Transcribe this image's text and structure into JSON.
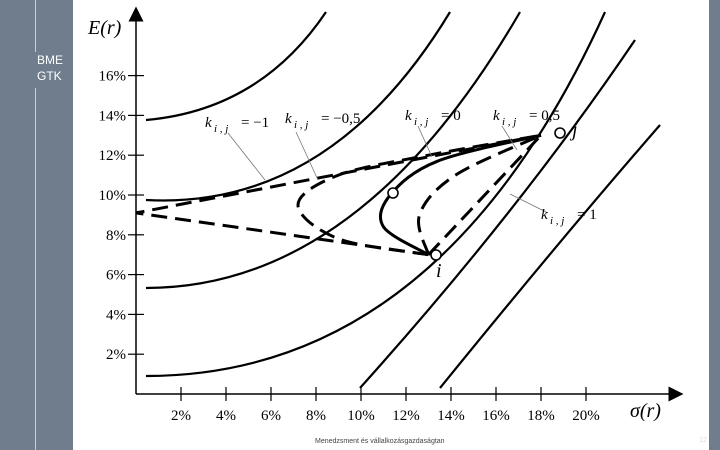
{
  "logo": {
    "line1": "BME",
    "line2": "GTK"
  },
  "footer": {
    "text": "Menedzsment és vállalkozásgazdaságtan",
    "page": "12"
  },
  "chart_data": {
    "type": "line",
    "ylabel": "E(r)",
    "xlabel": "σ(r)",
    "yticks": [
      "2%",
      "4%",
      "6%",
      "8%",
      "10%",
      "12%",
      "14%",
      "16%"
    ],
    "xticks": [
      "2%",
      "4%",
      "6%",
      "8%",
      "10%",
      "12%",
      "14%",
      "16%",
      "18%",
      "20%"
    ],
    "xlim": [
      0,
      22
    ],
    "ylim": [
      0,
      18
    ],
    "points": [
      {
        "name": "i",
        "x": 13.0,
        "y": 7.0
      },
      {
        "name": "j",
        "x": 18.0,
        "y": 13.0
      }
    ],
    "annotations": [
      {
        "k": "k",
        "sub": "i , j",
        "rel": "= −1"
      },
      {
        "k": "k",
        "sub": "i , j",
        "rel": "= −0,5"
      },
      {
        "k": "k",
        "sub": "i , j",
        "rel": "= 0"
      },
      {
        "k": "k",
        "sub": "i , j",
        "rel": "= 0,5"
      },
      {
        "k": "k",
        "sub": "i , j",
        "rel": "= 1"
      }
    ],
    "series": [
      {
        "correlation": -1,
        "style": "dashed",
        "points": [
          [
            13.0,
            7.0
          ],
          [
            0.0,
            9.1
          ],
          [
            18.0,
            13.0
          ]
        ]
      },
      {
        "correlation": -0.5,
        "style": "dashed",
        "points": [
          [
            13.0,
            7.0
          ],
          [
            9.0,
            7.8
          ],
          [
            7.2,
            9.5
          ],
          [
            9.0,
            11.0
          ],
          [
            13.0,
            12.0
          ],
          [
            18.0,
            13.0
          ]
        ]
      },
      {
        "correlation": 0,
        "style": "solid",
        "points": [
          [
            13.0,
            7.0
          ],
          [
            11.0,
            8.4
          ],
          [
            11.3,
            10.0
          ],
          [
            13.4,
            11.7
          ],
          [
            18.0,
            13.0
          ]
        ]
      },
      {
        "correlation": 0.5,
        "style": "dashed",
        "points": [
          [
            13.0,
            7.0
          ],
          [
            12.6,
            9.0
          ],
          [
            14.2,
            11.0
          ],
          [
            18.0,
            13.0
          ]
        ]
      },
      {
        "correlation": 1,
        "style": "dashed",
        "points": [
          [
            13.0,
            7.0
          ],
          [
            18.0,
            13.0
          ]
        ]
      }
    ],
    "indifference_curves": 6,
    "grid": false
  }
}
